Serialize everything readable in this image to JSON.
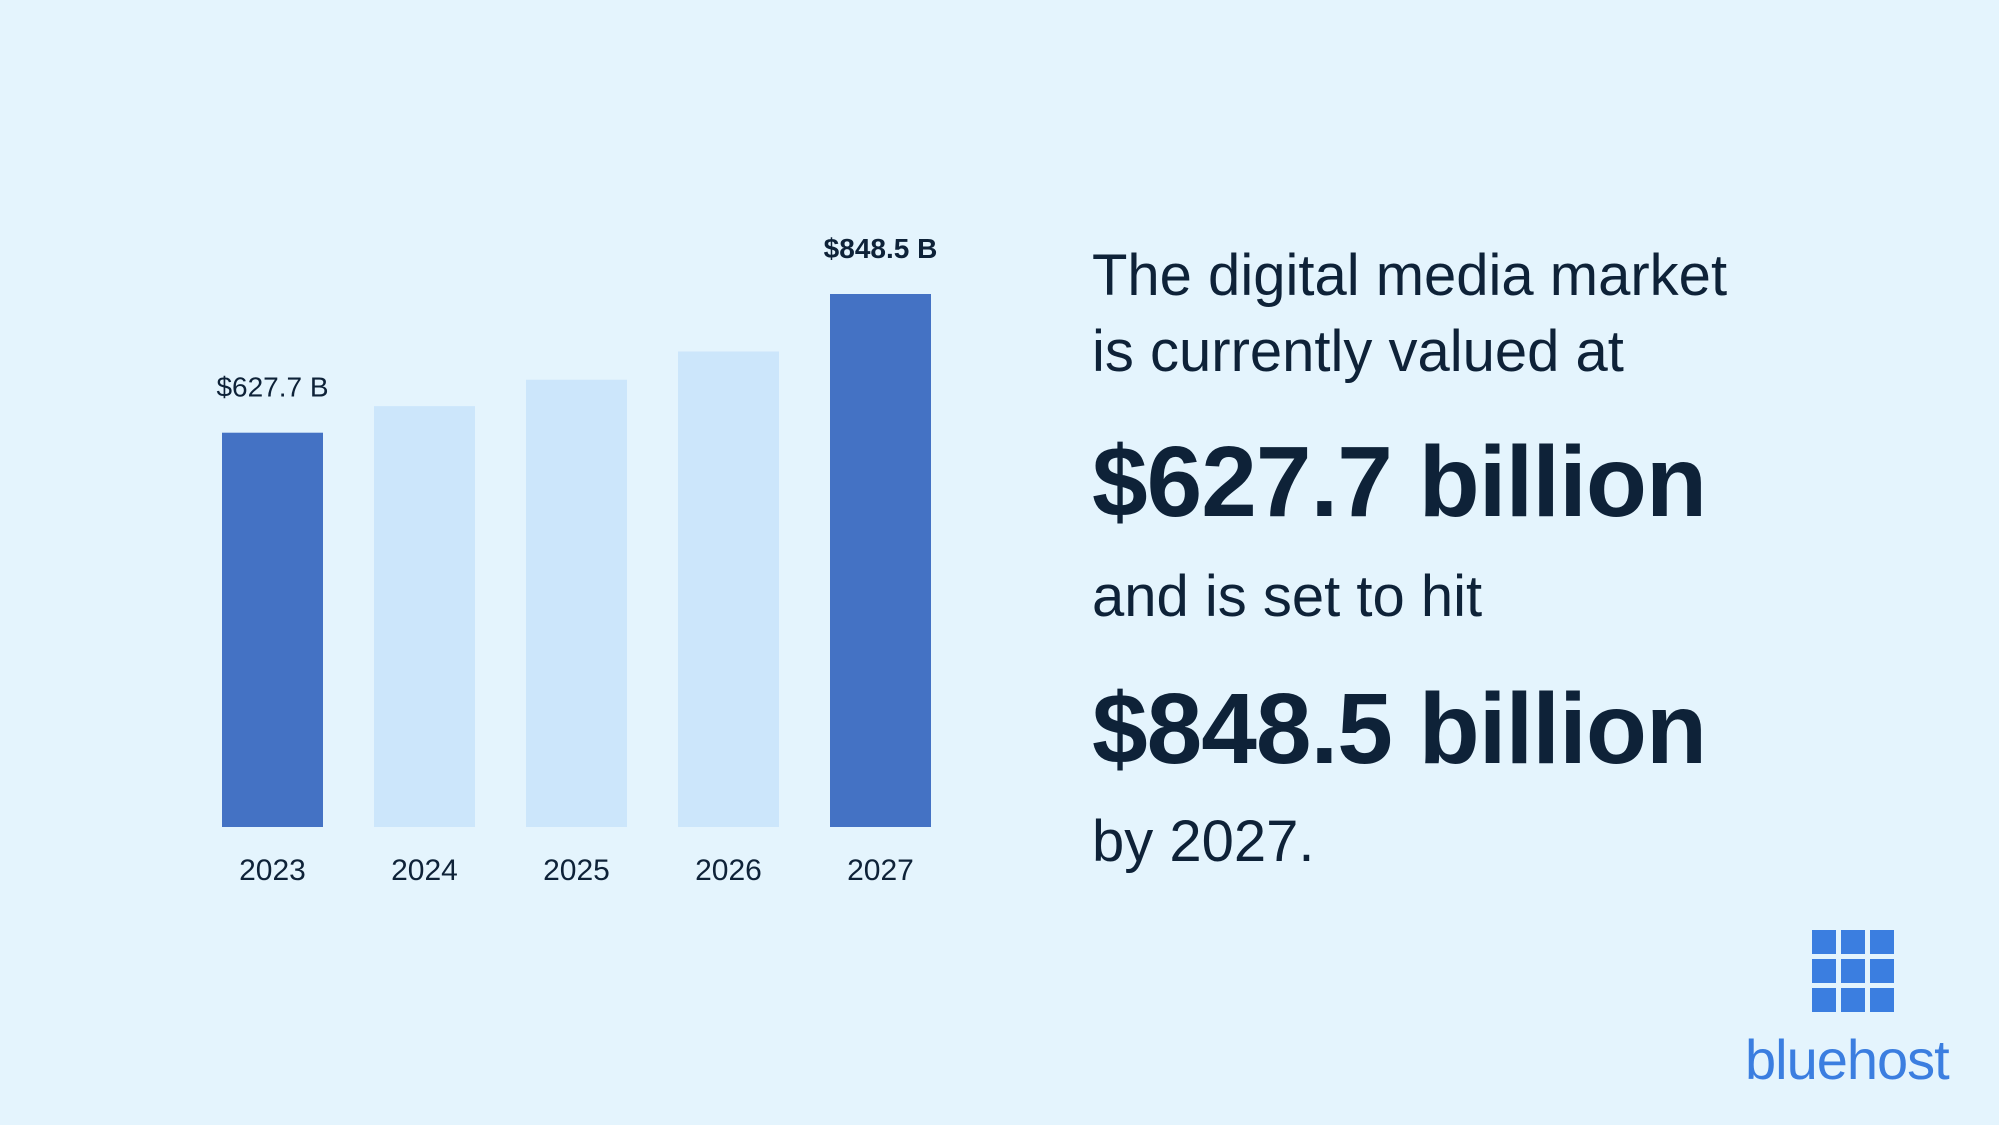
{
  "colors": {
    "background": "#e4f4fd",
    "bar_highlight": "#4472c4",
    "bar_muted": "#cce6fb",
    "text_dark": "#0e2238",
    "brand_blue": "#3b7ee0"
  },
  "chart_data": {
    "type": "bar",
    "categories": [
      "2023",
      "2024",
      "2025",
      "2026",
      "2027"
    ],
    "values": [
      627.7,
      670,
      712,
      757,
      848.5
    ],
    "highlighted": [
      true,
      false,
      false,
      false,
      true
    ],
    "data_labels": [
      "$627.7 B",
      "",
      "",
      "",
      "$848.5 B"
    ],
    "title": "",
    "xlabel": "",
    "ylabel": "",
    "ylim": [
      0,
      848.5
    ]
  },
  "headline": {
    "line1": "The digital media market",
    "line2": "is currently valued at",
    "value1": "$627.7 billion",
    "line3": "and is set to hit",
    "value2": "$848.5 billion",
    "line4": "by 2027."
  },
  "logo": {
    "icon": "grid-icon",
    "text": "bluehost"
  }
}
